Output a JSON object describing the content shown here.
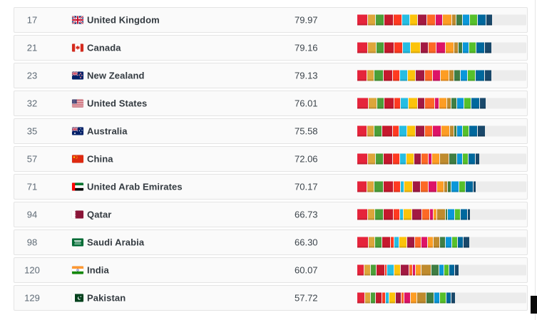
{
  "table": {
    "columns": [
      "rank",
      "flag",
      "country",
      "score",
      "sdg-bar"
    ],
    "rows": [
      {
        "rank": "17",
        "country": "United Kingdom",
        "flag": "gb",
        "score": "79.97",
        "segments": [
          15,
          10,
          12,
          13,
          11,
          11,
          11,
          12,
          12,
          10,
          12,
          6,
          8,
          10,
          10,
          12,
          9
        ]
      },
      {
        "rank": "21",
        "country": "Canada",
        "flag": "ca",
        "score": "79.16",
        "segments": [
          15,
          11,
          11,
          14,
          11,
          11,
          13,
          11,
          11,
          12,
          12,
          5,
          5,
          9,
          9,
          12,
          9
        ]
      },
      {
        "rank": "23",
        "country": "New Zealand",
        "flag": "nz",
        "score": "79.13",
        "segments": [
          15,
          10,
          13,
          13,
          11,
          11,
          11,
          13,
          12,
          11,
          12,
          7,
          9,
          10,
          11,
          13,
          10
        ]
      },
      {
        "rank": "32",
        "country": "United States",
        "flag": "us",
        "score": "76.01",
        "segments": [
          16,
          12,
          10,
          14,
          9,
          11,
          13,
          10,
          14,
          5,
          11,
          6,
          7,
          10,
          10,
          12,
          9
        ]
      },
      {
        "rank": "35",
        "country": "Australia",
        "flag": "au",
        "score": "75.58",
        "segments": [
          15,
          10,
          12,
          15,
          10,
          11,
          13,
          13,
          12,
          12,
          13,
          5,
          4,
          8,
          9,
          12,
          12
        ]
      },
      {
        "rank": "57",
        "country": "China",
        "flag": "cn",
        "score": "72.06",
        "segments": [
          15,
          11,
          10,
          13,
          10,
          9,
          10,
          10,
          10,
          4,
          11,
          12,
          11,
          8,
          7,
          10,
          5
        ]
      },
      {
        "rank": "71",
        "country": "United Arab Emirates",
        "flag": "ae",
        "score": "70.17",
        "segments": [
          14,
          10,
          12,
          14,
          10,
          4,
          12,
          11,
          11,
          11,
          10,
          4,
          5,
          10,
          9,
          11,
          3
        ]
      },
      {
        "rank": "94",
        "country": "Qatar",
        "flag": "qa",
        "score": "66.73",
        "segments": [
          15,
          11,
          12,
          14,
          9,
          5,
          12,
          14,
          11,
          5,
          4,
          12,
          3,
          10,
          7,
          11,
          3
        ]
      },
      {
        "rank": "98",
        "country": "Saudi Arabia",
        "flag": "sa",
        "score": "66.30",
        "segments": [
          17,
          10,
          10,
          13,
          4,
          7,
          12,
          11,
          9,
          10,
          8,
          9,
          8,
          9,
          9,
          8,
          9
        ]
      },
      {
        "rank": "120",
        "country": "India",
        "flag": "in",
        "score": "60.07",
        "segments": [
          10,
          10,
          7,
          13,
          3,
          10,
          9,
          12,
          5,
          4,
          8,
          14,
          12,
          7,
          7,
          8,
          6
        ]
      },
      {
        "rank": "129",
        "country": "Pakistan",
        "flag": "pk",
        "score": "57.72",
        "segments": [
          12,
          8,
          7,
          10,
          4,
          5,
          10,
          8,
          3,
          10,
          9,
          14,
          12,
          9,
          9,
          7,
          6
        ]
      }
    ]
  },
  "sdg_goal_colors": [
    "#E5243B",
    "#DDA63A",
    "#4C9F38",
    "#C5192D",
    "#FF3A21",
    "#26BDE2",
    "#FCC30B",
    "#A21942",
    "#FD6925",
    "#DD1367",
    "#FD9D24",
    "#BF8B2E",
    "#3F7E44",
    "#0A97D9",
    "#56C02B",
    "#00689D",
    "#19486A"
  ],
  "bar": {
    "track_color": "#ECECEC",
    "scale_note": "bar fill length = score percent of track"
  },
  "colors": {
    "row_bg": "#FAFAFA",
    "row_border": "#E4E4E4",
    "rank_text": "#5F6B76",
    "name_text": "#343B41"
  }
}
